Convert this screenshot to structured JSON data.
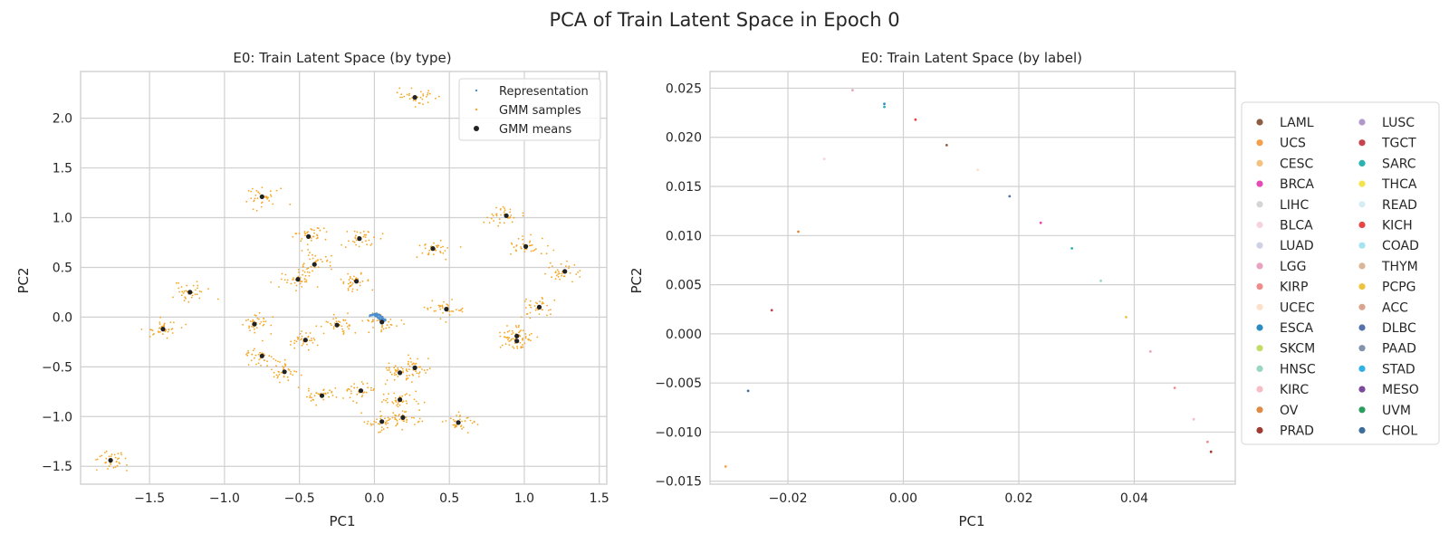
{
  "figure": {
    "suptitle": "PCA of Train Latent Space in Epoch 0"
  },
  "chart_data": [
    {
      "type": "scatter",
      "title": "E0: Train Latent Space (by type)",
      "xlabel": "PC1",
      "ylabel": "PC2",
      "xlim": [
        -1.96,
        1.55
      ],
      "ylim": [
        -1.68,
        2.47
      ],
      "xticks": [
        -1.5,
        -1.0,
        -0.5,
        0.0,
        0.5,
        1.0,
        1.5
      ],
      "xtick_labels": [
        "−1.5",
        "−1.0",
        "−0.5",
        "0.0",
        "0.5",
        "1.0",
        "1.5"
      ],
      "yticks": [
        -1.5,
        -1.0,
        -0.5,
        0.0,
        0.5,
        1.0,
        1.5,
        2.0
      ],
      "ytick_labels": [
        "−1.5",
        "−1.0",
        "−0.5",
        "0.0",
        "0.5",
        "1.0",
        "1.5",
        "2.0"
      ],
      "grid": true,
      "legend_position": "upper right",
      "series": [
        {
          "name": "Representation",
          "color": "#4c8fd0",
          "marker": "point",
          "arc_points": [
            [
              -0.03,
              0.01
            ],
            [
              -0.01,
              0.025
            ],
            [
              0.01,
              0.03
            ],
            [
              0.03,
              0.02
            ],
            [
              0.05,
              0.0
            ],
            [
              0.06,
              -0.02
            ],
            [
              0.07,
              -0.04
            ],
            [
              0.05,
              -0.03
            ],
            [
              0.02,
              0.0
            ],
            [
              0.0,
              0.015
            ]
          ]
        },
        {
          "name": "GMM samples",
          "color": "#f5a623",
          "marker": "dot",
          "points_per_component": 35,
          "spread": [
            0.06,
            0.05
          ]
        },
        {
          "name": "GMM means",
          "color": "#222222",
          "marker": "circle",
          "points": [
            [
              0.27,
              2.21
            ],
            [
              -0.75,
              1.21
            ],
            [
              0.88,
              1.02
            ],
            [
              -0.44,
              0.81
            ],
            [
              -0.1,
              0.79
            ],
            [
              0.39,
              0.69
            ],
            [
              1.01,
              0.71
            ],
            [
              -0.4,
              0.53
            ],
            [
              1.27,
              0.46
            ],
            [
              -0.51,
              0.38
            ],
            [
              -0.12,
              0.36
            ],
            [
              -1.23,
              0.25
            ],
            [
              1.1,
              0.1
            ],
            [
              0.48,
              0.08
            ],
            [
              -1.41,
              -0.12
            ],
            [
              -0.8,
              -0.07
            ],
            [
              -0.25,
              -0.08
            ],
            [
              0.05,
              -0.05
            ],
            [
              0.95,
              -0.19
            ],
            [
              0.95,
              -0.24
            ],
            [
              -0.46,
              -0.23
            ],
            [
              -0.75,
              -0.39
            ],
            [
              0.27,
              -0.51
            ],
            [
              -0.6,
              -0.55
            ],
            [
              0.17,
              -0.56
            ],
            [
              -0.09,
              -0.74
            ],
            [
              -0.35,
              -0.79
            ],
            [
              0.17,
              -0.83
            ],
            [
              0.19,
              -1.01
            ],
            [
              0.05,
              -1.05
            ],
            [
              0.56,
              -1.06
            ],
            [
              -1.76,
              -1.44
            ]
          ]
        }
      ]
    },
    {
      "type": "scatter",
      "title": "E0: Train Latent Space (by label)",
      "xlabel": "PC1",
      "ylabel": "PC2",
      "xlim": [
        -0.0335,
        0.0575
      ],
      "ylim": [
        -0.0153,
        0.0267
      ],
      "xticks": [
        -0.02,
        0.0,
        0.02,
        0.04
      ],
      "xtick_labels": [
        "−0.02",
        "0.00",
        "0.02",
        "0.04"
      ],
      "yticks": [
        -0.015,
        -0.01,
        -0.005,
        0.0,
        0.005,
        0.01,
        0.015,
        0.02,
        0.025
      ],
      "ytick_labels": [
        "−0.015",
        "−0.010",
        "−0.005",
        "0.000",
        "0.005",
        "0.010",
        "0.015",
        "0.020",
        "0.025"
      ],
      "grid": true,
      "legend_position": "outside right",
      "legend_columns": 2,
      "labels": [
        {
          "name": "LAML",
          "color": "#8c5d42"
        },
        {
          "name": "UCS",
          "color": "#f4a04a"
        },
        {
          "name": "CESC",
          "color": "#f2c27e"
        },
        {
          "name": "BRCA",
          "color": "#e64ab5"
        },
        {
          "name": "LIHC",
          "color": "#d5d5d5"
        },
        {
          "name": "BLCA",
          "color": "#f7d3de"
        },
        {
          "name": "LUAD",
          "color": "#cfd2e4"
        },
        {
          "name": "LGG",
          "color": "#e7a3bf"
        },
        {
          "name": "KIRP",
          "color": "#ee8d8b"
        },
        {
          "name": "UCEC",
          "color": "#fde0c9"
        },
        {
          "name": "ESCA",
          "color": "#2b8cc4"
        },
        {
          "name": "SKCM",
          "color": "#c3dc66"
        },
        {
          "name": "HNSC",
          "color": "#9bd6c3"
        },
        {
          "name": "KIRC",
          "color": "#f6bdc6"
        },
        {
          "name": "OV",
          "color": "#de8b45"
        },
        {
          "name": "PRAD",
          "color": "#9e3b33"
        },
        {
          "name": "LUSC",
          "color": "#b197cc"
        },
        {
          "name": "TGCT",
          "color": "#c9414d"
        },
        {
          "name": "SARC",
          "color": "#2ab3b0"
        },
        {
          "name": "THCA",
          "color": "#f6e24d"
        },
        {
          "name": "READ",
          "color": "#d8ecf8"
        },
        {
          "name": "KICH",
          "color": "#e74444"
        },
        {
          "name": "COAD",
          "color": "#a7e2f0"
        },
        {
          "name": "THYM",
          "color": "#dbb799"
        },
        {
          "name": "PCPG",
          "color": "#edc33f"
        },
        {
          "name": "ACC",
          "color": "#d9a58e"
        },
        {
          "name": "DLBC",
          "color": "#5671ab"
        },
        {
          "name": "PAAD",
          "color": "#8193ad"
        },
        {
          "name": "STAD",
          "color": "#2fb3e6"
        },
        {
          "name": "MESO",
          "color": "#7a4b9b"
        },
        {
          "name": "UVM",
          "color": "#2b9e5e"
        },
        {
          "name": "CHOL",
          "color": "#3d6d9b"
        }
      ],
      "points": [
        {
          "x": -0.0088,
          "y": 0.0248,
          "label": "LGG"
        },
        {
          "x": -0.0033,
          "y": 0.0234,
          "label": "ESCA"
        },
        {
          "x": -0.0033,
          "y": 0.0231,
          "label": "SARC"
        },
        {
          "x": 0.0021,
          "y": 0.0218,
          "label": "KICH"
        },
        {
          "x": 0.0075,
          "y": 0.0192,
          "label": "LAML"
        },
        {
          "x": -0.0137,
          "y": 0.0178,
          "label": "BLCA"
        },
        {
          "x": 0.0129,
          "y": 0.0167,
          "label": "UCEC"
        },
        {
          "x": 0.0184,
          "y": 0.014,
          "label": "DLBC"
        },
        {
          "x": -0.0182,
          "y": 0.0104,
          "label": "OV"
        },
        {
          "x": 0.0238,
          "y": 0.0113,
          "label": "BRCA"
        },
        {
          "x": 0.0292,
          "y": 0.0087,
          "label": "SARC"
        },
        {
          "x": 0.0342,
          "y": 0.0054,
          "label": "HNSC"
        },
        {
          "x": -0.0228,
          "y": 0.0024,
          "label": "TGCT"
        },
        {
          "x": 0.0386,
          "y": 0.0017,
          "label": "PCPG"
        },
        {
          "x": 0.0428,
          "y": -0.0018,
          "label": "LGG"
        },
        {
          "x": 0.047,
          "y": -0.0055,
          "label": "KIRP"
        },
        {
          "x": -0.0269,
          "y": -0.0058,
          "label": "CHOL"
        },
        {
          "x": 0.0503,
          "y": -0.0087,
          "label": "KIRC"
        },
        {
          "x": 0.0527,
          "y": -0.011,
          "label": "KIRP"
        },
        {
          "x": 0.0533,
          "y": -0.012,
          "label": "PRAD"
        },
        {
          "x": -0.0308,
          "y": -0.0135,
          "label": "UCS"
        }
      ]
    }
  ]
}
